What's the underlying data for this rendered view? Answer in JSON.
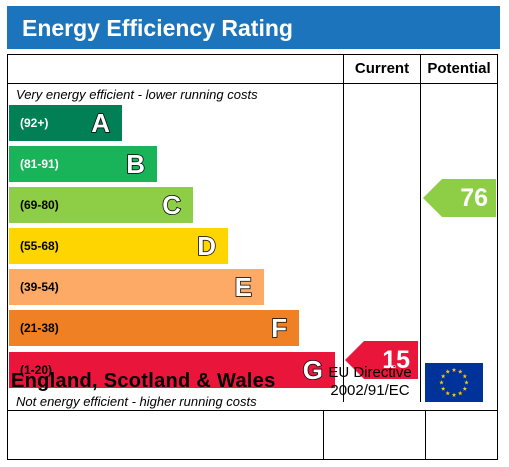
{
  "header": {
    "title": "Energy Efficiency Rating"
  },
  "columns": {
    "current": "Current",
    "potential": "Potential"
  },
  "captions": {
    "top": "Very energy efficient - lower running costs",
    "bottom": "Not energy efficient - higher running costs"
  },
  "bands": [
    {
      "range": "(92+)",
      "letter": "A",
      "color": "#008054",
      "range_color": "#ffffff"
    },
    {
      "range": "(81-91)",
      "letter": "B",
      "color": "#19b459",
      "range_color": "#ffffff"
    },
    {
      "range": "(69-80)",
      "letter": "C",
      "color": "#8dce46",
      "range_color": "#000000"
    },
    {
      "range": "(55-68)",
      "letter": "D",
      "color": "#ffd500",
      "range_color": "#000000"
    },
    {
      "range": "(39-54)",
      "letter": "E",
      "color": "#fcaa65",
      "range_color": "#000000"
    },
    {
      "range": "(21-38)",
      "letter": "F",
      "color": "#ef8023",
      "range_color": "#000000"
    },
    {
      "range": "(1-20)",
      "letter": "G",
      "color": "#e9153b",
      "range_color": "#000000"
    }
  ],
  "ratings": {
    "current": {
      "value": "15",
      "band": "G",
      "color": "#e9153b"
    },
    "potential": {
      "value": "76",
      "band": "C",
      "color": "#8dce46"
    }
  },
  "footer": {
    "region": "England, Scotland & Wales",
    "directive_line1": "EU Directive",
    "directive_line2": "2002/91/EC",
    "flag_icon": "eu-flag-icon",
    "flag_color": "#003399",
    "star_color": "#ffcc00"
  }
}
